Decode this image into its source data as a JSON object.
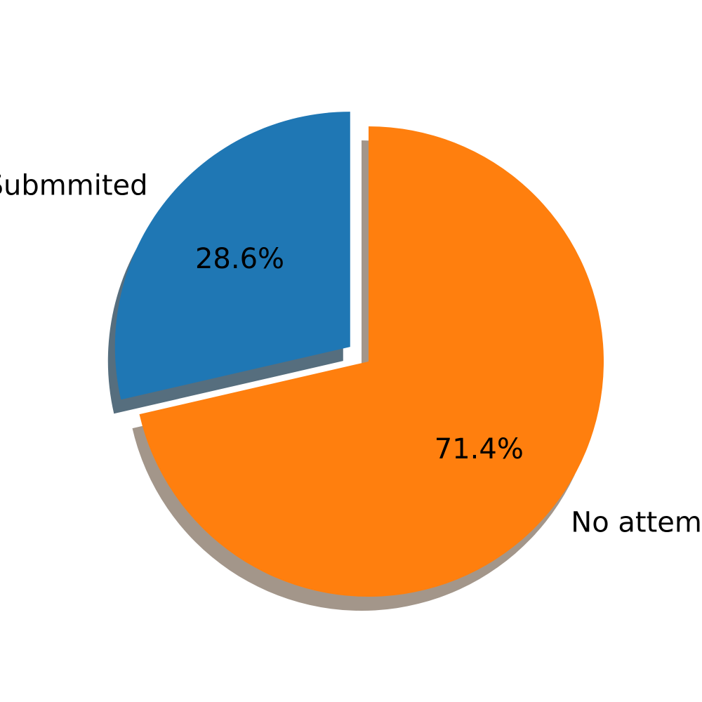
{
  "chart_data": {
    "type": "pie",
    "labels": [
      "Submmited",
      "No attempt"
    ],
    "values": [
      28.6,
      71.4
    ],
    "autopct_labels": [
      "28.6%",
      "71.4%"
    ],
    "colors": [
      "#1f77b4",
      "#ff7f0e"
    ],
    "explode": [
      true,
      false
    ],
    "shadow": true,
    "start_angle": 90,
    "title": ""
  }
}
